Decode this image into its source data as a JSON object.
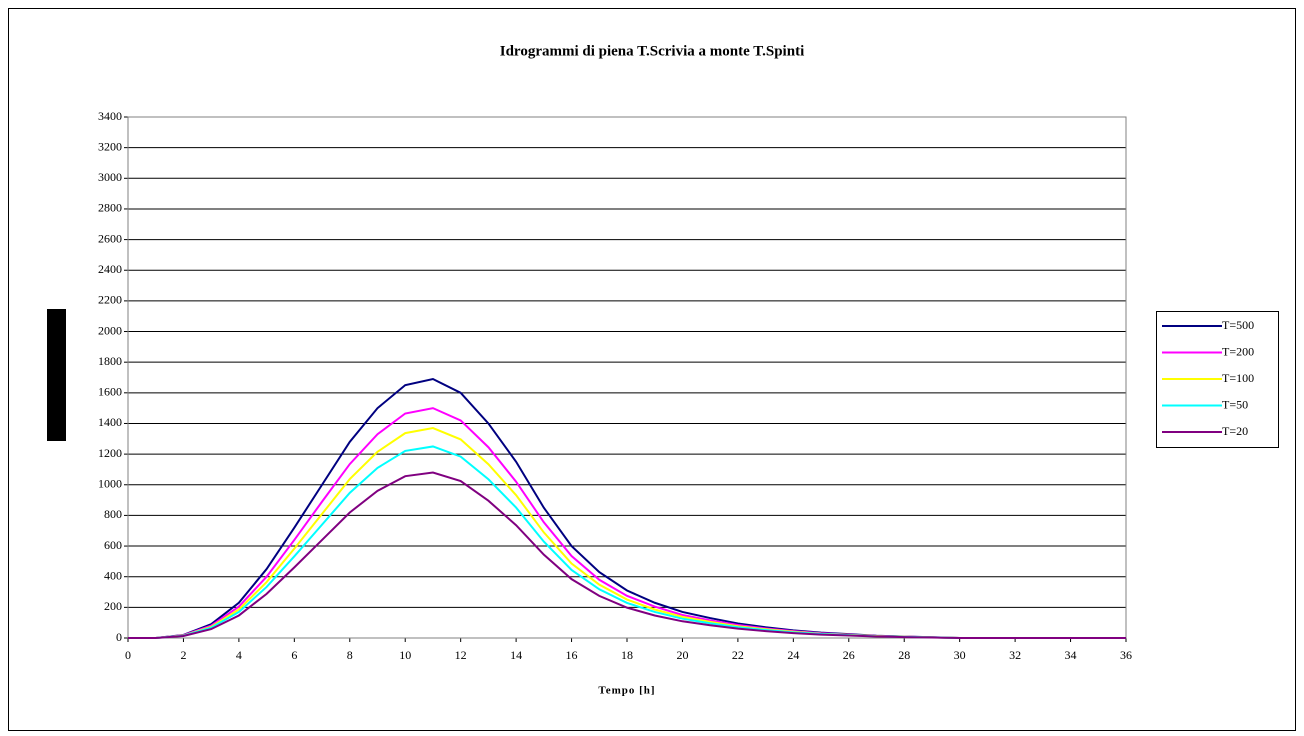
{
  "chart_data": {
    "type": "line",
    "title": "Idrogrammi di piena T.Scrivia a monte T.Spinti",
    "x_label": "Tempo [h]",
    "x": [
      0,
      1,
      2,
      3,
      4,
      5,
      6,
      7,
      8,
      9,
      10,
      11,
      12,
      13,
      14,
      15,
      16,
      17,
      18,
      19,
      20,
      21,
      22,
      23,
      24,
      25,
      26,
      27,
      28,
      29,
      30,
      31,
      32,
      33,
      34,
      35,
      36
    ],
    "series": [
      {
        "name": "T=500",
        "color": "#000080",
        "values": [
          0,
          0,
          20,
          90,
          230,
          450,
          720,
          1000,
          1280,
          1500,
          1650,
          1690,
          1600,
          1400,
          1150,
          850,
          600,
          430,
          310,
          230,
          170,
          130,
          95,
          70,
          50,
          35,
          25,
          15,
          10,
          5,
          0,
          0,
          0,
          0,
          0,
          0,
          0
        ]
      },
      {
        "name": "T=200",
        "color": "#ff00ff",
        "values": [
          0,
          0,
          18,
          80,
          205,
          400,
          640,
          890,
          1135,
          1330,
          1465,
          1500,
          1420,
          1245,
          1020,
          755,
          535,
          380,
          275,
          205,
          150,
          115,
          85,
          62,
          45,
          31,
          22,
          13,
          9,
          4,
          0,
          0,
          0,
          0,
          0,
          0,
          0
        ]
      },
      {
        "name": "T=100",
        "color": "#ffff00",
        "values": [
          0,
          0,
          16,
          73,
          186,
          365,
          583,
          810,
          1037,
          1215,
          1337,
          1370,
          1296,
          1134,
          932,
          689,
          486,
          348,
          251,
          186,
          138,
          105,
          77,
          57,
          41,
          28,
          20,
          12,
          8,
          4,
          0,
          0,
          0,
          0,
          0,
          0,
          0
        ]
      },
      {
        "name": "T=50",
        "color": "#00ffff",
        "values": [
          0,
          0,
          15,
          67,
          170,
          333,
          533,
          740,
          947,
          1110,
          1221,
          1250,
          1184,
          1036,
          851,
          629,
          444,
          318,
          229,
          170,
          126,
          96,
          70,
          52,
          37,
          26,
          19,
          11,
          7,
          4,
          0,
          0,
          0,
          0,
          0,
          0,
          0
        ]
      },
      {
        "name": "T=20",
        "color": "#800080",
        "values": [
          0,
          0,
          13,
          58,
          147,
          288,
          461,
          640,
          819,
          960,
          1056,
          1080,
          1024,
          896,
          736,
          544,
          384,
          275,
          198,
          147,
          109,
          83,
          61,
          45,
          32,
          22,
          16,
          10,
          6,
          3,
          0,
          0,
          0,
          0,
          0,
          0,
          0
        ]
      }
    ],
    "xlim": [
      0,
      36
    ],
    "xticks": [
      0,
      2,
      4,
      6,
      8,
      10,
      12,
      14,
      16,
      18,
      20,
      22,
      24,
      26,
      28,
      30,
      32,
      34,
      36
    ],
    "ylim": [
      0,
      3400
    ],
    "yticks": [
      0,
      200,
      400,
      600,
      800,
      1000,
      1200,
      1400,
      1600,
      1800,
      2000,
      2200,
      2400,
      2600,
      2800,
      3000,
      3200,
      3400
    ],
    "grid": true,
    "legend": "right"
  }
}
